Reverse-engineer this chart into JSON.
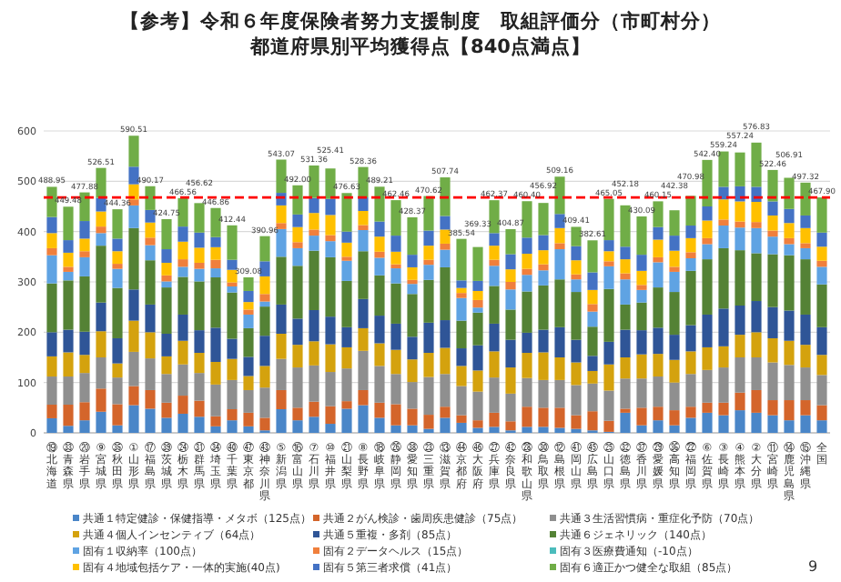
{
  "chart_data": {
    "type": "bar",
    "stacked": true,
    "title": "【参考】令和６年度保険者努力支援制度　取組評価分（市町村分）",
    "subtitle": "都道府県別平均獲得点【840点満点】",
    "categories": [
      "⑲北海道",
      "㉝青森県",
      "⑳岩手県",
      "⑨宮城県",
      "㉟秋田県",
      "①山形県",
      "⑰福島県",
      "㊴茨城県",
      "㉔栃木県",
      "㉛群馬県",
      "㉞埼玉県",
      "㊵千葉県",
      "㊼東京都",
      "㊸神奈川県",
      "⑤新潟県",
      "⑯富山県",
      "⑦石川県",
      "⑩福井県",
      "㉑山梨県",
      "⑧長野県",
      "⑱岐阜県",
      "㉖静岡県",
      "㊳愛知県",
      "㉓三重県",
      "⑬滋賀県",
      "㊹京都府",
      "㊻大阪府",
      "㉗兵庫県",
      "㊷奈良県",
      "㉘和歌山県",
      "㉚鳥取県",
      "⑫島根県",
      "㊶岡山県",
      "㊺広島県",
      "㉕山口県",
      "㉜徳島県",
      "㊲香川県",
      "㉙愛媛県",
      "㊱高知県",
      "㉒福岡県",
      "⑥佐賀県",
      "③長崎県",
      "④熊本県",
      "②大分県",
      "⑪宮崎県",
      "⑭鹿児島県",
      "⑮沖縄県",
      "全国"
    ],
    "series": [
      {
        "name": "共通１特定健診・保健指導・メタボ（125点）",
        "color": "#4a86c8",
        "values": [
          29,
          14,
          25,
          42,
          15,
          55,
          48,
          30,
          38,
          32,
          13,
          25,
          13,
          5,
          47,
          25,
          32,
          18,
          48,
          55,
          30,
          15,
          15,
          8,
          30,
          20,
          10,
          12,
          5,
          12,
          12,
          10,
          8,
          5,
          2,
          40,
          15,
          25,
          15,
          30,
          40,
          35,
          45,
          40,
          35,
          25,
          35,
          25
        ]
      },
      {
        "name": "共通２がん検診・歯周疾患健診（75点）",
        "color": "#d4652b",
        "values": [
          27,
          42,
          36,
          46,
          42,
          38,
          37,
          30,
          36,
          32,
          20,
          22,
          27,
          25,
          38,
          25,
          30,
          35,
          15,
          30,
          30,
          42,
          33,
          28,
          22,
          15,
          15,
          28,
          18,
          40,
          38,
          40,
          27,
          38,
          22,
          8,
          35,
          27,
          30,
          22,
          20,
          25,
          35,
          45,
          30,
          40,
          30,
          30
        ]
      },
      {
        "name": "共通３生活習慣病・重症化予防（70点）",
        "color": "#8f8f8f",
        "values": [
          56,
          56,
          58,
          62,
          53,
          68,
          63,
          57,
          62,
          55,
          63,
          58,
          45,
          60,
          62,
          80,
          72,
          68,
          65,
          78,
          73,
          60,
          53,
          75,
          65,
          58,
          57,
          70,
          55,
          57,
          55,
          55,
          60,
          55,
          60,
          60,
          58,
          60,
          55,
          65,
          65,
          70,
          70,
          65,
          75,
          70,
          65,
          60
        ]
      },
      {
        "name": "共通４個人インセンティブ（64点）",
        "color": "#d4a20e",
        "values": [
          40,
          48,
          36,
          52,
          28,
          62,
          52,
          35,
          47,
          40,
          45,
          42,
          28,
          43,
          50,
          45,
          48,
          55,
          42,
          45,
          45,
          48,
          45,
          48,
          52,
          40,
          42,
          52,
          52,
          50,
          55,
          45,
          45,
          25,
          52,
          42,
          48,
          45,
          45,
          45,
          45,
          42,
          45,
          50,
          48,
          48,
          45,
          40
        ]
      },
      {
        "name": "共通５重複・多剤（85点）",
        "color": "#2f5597",
        "values": [
          48,
          45,
          46,
          57,
          50,
          62,
          55,
          45,
          52,
          45,
          68,
          40,
          38,
          60,
          58,
          52,
          62,
          55,
          40,
          58,
          55,
          52,
          45,
          60,
          55,
          35,
          50,
          55,
          55,
          40,
          45,
          60,
          45,
          30,
          45,
          55,
          48,
          52,
          50,
          52,
          65,
          75,
          58,
          62,
          62,
          60,
          60,
          55
        ]
      },
      {
        "name": "共通６ジェネリック（140点）",
        "color": "#548235",
        "values": [
          97,
          98,
          110,
          113,
          100,
          122,
          88,
          92,
          75,
          97,
          100,
          92,
          57,
          58,
          95,
          105,
          118,
          118,
          92,
          95,
          80,
          80,
          85,
          85,
          105,
          55,
          65,
          75,
          60,
          82,
          88,
          95,
          95,
          58,
          105,
          50,
          55,
          80,
          85,
          108,
          110,
          120,
          110,
          95,
          105,
          110,
          110,
          85
        ]
      },
      {
        "name": "固有１収納率（100点）",
        "color": "#5fa3e3",
        "values": [
          56,
          17,
          38,
          25,
          38,
          45,
          30,
          12,
          20,
          25,
          18,
          12,
          27,
          10,
          55,
          35,
          30,
          32,
          40,
          42,
          35,
          30,
          20,
          30,
          35,
          45,
          10,
          40,
          40,
          33,
          30,
          60,
          25,
          30,
          45,
          50,
          25,
          50,
          40,
          25,
          30,
          45,
          45,
          50,
          35,
          22,
          22,
          35
        ]
      },
      {
        "name": "固有２データヘルス（15点）",
        "color": "#f07f3c",
        "values": [
          14,
          10,
          12,
          13,
          10,
          12,
          15,
          12,
          15,
          12,
          17,
          8,
          10,
          15,
          12,
          12,
          12,
          12,
          8,
          10,
          12,
          8,
          8,
          10,
          12,
          10,
          15,
          12,
          15,
          12,
          12,
          12,
          10,
          15,
          10,
          12,
          10,
          10,
          10,
          12,
          12,
          12,
          12,
          12,
          12,
          12,
          10,
          12
        ]
      },
      {
        "name": "固有３医療費通知（-10点）",
        "color": "#4bbcbc",
        "values": [
          null,
          null,
          null,
          null,
          null,
          null,
          null,
          null,
          null,
          null,
          null,
          null,
          null,
          null,
          null,
          null,
          null,
          null,
          null,
          null,
          null,
          null,
          null,
          null,
          null,
          null,
          null,
          null,
          null,
          null,
          null,
          null,
          null,
          null,
          null,
          null,
          null,
          null,
          null,
          null,
          null,
          null,
          null,
          null,
          null,
          null,
          null,
          null
        ]
      },
      {
        "name": "固有４地域包括ケア・一体的実施(40点)",
        "color": "#ffc000",
        "values": [
          30,
          28,
          25,
          30,
          25,
          30,
          30,
          25,
          35,
          30,
          25,
          25,
          15,
          35,
          35,
          30,
          33,
          40,
          28,
          28,
          30,
          25,
          25,
          28,
          28,
          10,
          18,
          28,
          25,
          30,
          28,
          30,
          28,
          28,
          20,
          28,
          28,
          35,
          32,
          28,
          35,
          40,
          40,
          40,
          30,
          30,
          30,
          28
        ]
      },
      {
        "name": "固有５第三者求償（41点）",
        "color": "#4472c4",
        "values": [
          32,
          25,
          35,
          27,
          25,
          35,
          25,
          27,
          30,
          30,
          20,
          20,
          22,
          30,
          25,
          25,
          30,
          32,
          22,
          27,
          30,
          32,
          25,
          30,
          27,
          15,
          20,
          25,
          30,
          32,
          30,
          28,
          28,
          35,
          22,
          25,
          32,
          25,
          30,
          25,
          28,
          25,
          30,
          30,
          28,
          28,
          25,
          28
        ]
      },
      {
        "name": "固有６適正かつ健全な取組（85点）",
        "color": "#70ad47",
        "values": [
          59.95,
          66.48,
          56.88,
          59.51,
          58.36,
          61.51,
          47.17,
          59.75,
          56.56,
          58.62,
          57.86,
          68.44,
          27.08,
          49.96,
          66.07,
          58,
          64.36,
          60.41,
          76.63,
          60.36,
          69.21,
          70.46,
          74.37,
          68.62,
          76.74,
          82.54,
          67.33,
          65.37,
          49.87,
          72.4,
          63.92,
          74.16,
          38.41,
          63.61,
          82.05,
          82.18,
          76.09,
          51.15,
          50.38,
          58.98,
          92.4,
          70.24,
          67.24,
          87.83,
          62.46,
          61.91,
          65.32,
          69.9
        ]
      }
    ],
    "totals": [
      "488.95",
      "449.48",
      "477.88",
      "526.51",
      "444.36",
      "590.51",
      "490.17",
      "424.75",
      "466.56",
      "456.62",
      "446.86",
      "412.44",
      "309.08",
      "390.96",
      "543.07",
      "492.00",
      "531.36",
      "525.41",
      "476.63",
      "528.36",
      "489.21",
      "462.46",
      "428.37",
      "470.62",
      "507.74",
      "385.54",
      "369.33",
      "462.37",
      "404.87",
      "460.40",
      "456.92",
      "509.16",
      "409.41",
      "382.61",
      "465.05",
      "452.18",
      "430.09",
      "460.15",
      "442.38",
      "470.98",
      "542.40",
      "559.24",
      "557.24",
      "576.83",
      "522.46",
      "506.91",
      "497.32",
      "467.90"
    ],
    "ylim": [
      0,
      600
    ],
    "yticks": [
      0,
      100,
      200,
      300,
      400,
      500,
      600
    ],
    "grid": "y",
    "legend": "bottom",
    "ref_lines": [
      {
        "axis": "y",
        "value": 467.9,
        "color": "#ff0000",
        "line_style": "dashed"
      }
    ],
    "annotations": [
      "9"
    ]
  }
}
